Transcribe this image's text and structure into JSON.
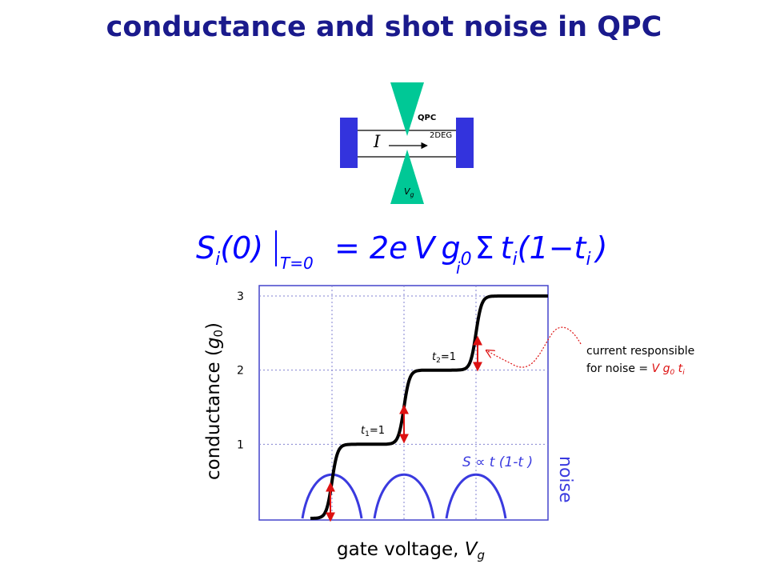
{
  "title": "conductance and shot noise in QPC",
  "device": {
    "current_label": "I",
    "qpc_label": "QPC",
    "deg_label": "2DEG",
    "gate_label": "V",
    "gate_sub": "g"
  },
  "formula": {
    "S": "S",
    "i": "i",
    "lhs_arg": "(0)",
    "T": "T",
    "eq0": "=0",
    "rhs_1": "= 2",
    "e": "e",
    "V": "V",
    "g": "g",
    "zero": "0",
    "sigma": "Σ",
    "t": "t",
    "open": "(1",
    "minus": "−",
    "close": ")"
  },
  "axes": {
    "ylabel": "conductance (",
    "ylabel_g": "g",
    "ylabel_sub": "0",
    "ylabel_close": ")",
    "xlabel": "gate voltage, ",
    "xlabel_V": "V",
    "xlabel_sub": "g",
    "yticks": [
      "1",
      "2",
      "3"
    ]
  },
  "annotations": {
    "t1": "t",
    "t1_sub": "1",
    "t1_eq": "=1",
    "t2": "t",
    "t2_sub": "2",
    "t2_eq": "=1",
    "noise_formula": "S ∝ t (1-t )",
    "noise_label": "noise",
    "current_line1": "current responsible",
    "current_line2_prefix": "for noise = ",
    "current_line2_colored": "V g",
    "current_line2_sub": "0",
    "current_line2_t": " t",
    "current_line2_tsub": "i"
  },
  "chart_data": {
    "type": "line",
    "series": [
      {
        "x": [
          0,
          0.5,
          1.0,
          1.5,
          2.0,
          2.5,
          3.0
        ],
        "y": [
          0,
          1,
          1,
          2,
          2,
          3,
          3
        ]
      }
    ],
    "noise_peaks_at": [
      0.5,
      1.5,
      2.5
    ],
    "ylim": [
      0,
      3
    ],
    "grid": true
  },
  "colors": {
    "title": "#1a1a8c",
    "gate": "#00c896",
    "contact": "#3333dd",
    "frame": "#4444cc",
    "grid": "#8080d0",
    "noise": "#3a3adf",
    "arrow": "#dd1111",
    "curve": "#000000"
  }
}
